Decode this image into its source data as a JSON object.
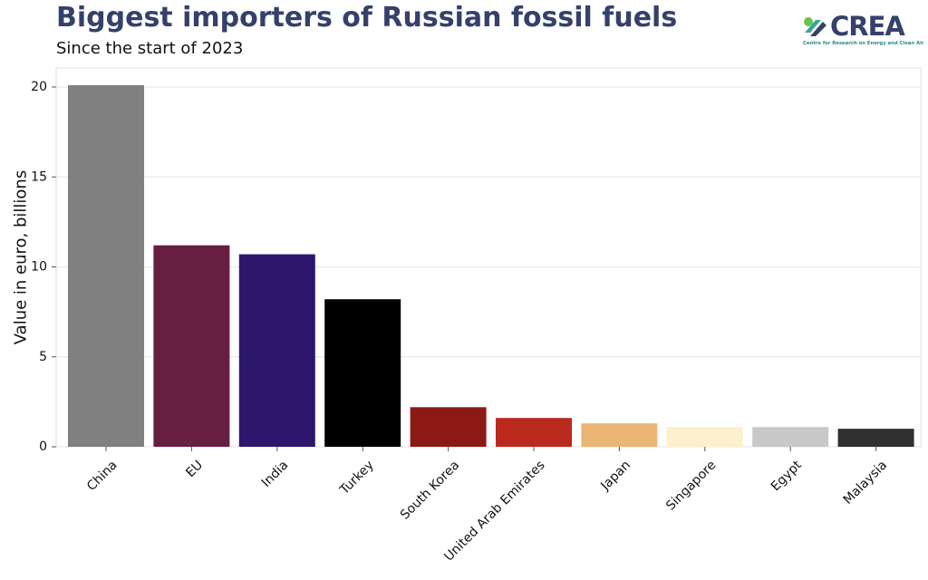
{
  "header": {
    "title": "Biggest importers of Russian fossil fuels",
    "subtitle": "Since the start of 2023"
  },
  "logo": {
    "word": "CREA",
    "tagline": "Centre for Research on Energy and Clean Air"
  },
  "chart_data": {
    "type": "bar",
    "title": "Biggest importers of Russian fossil fuels",
    "subtitle": "Since the start of 2023",
    "xlabel": "",
    "ylabel": "Value in euro, billions",
    "ylim": [
      0,
      21
    ],
    "yticks": [
      0,
      5,
      10,
      15,
      20
    ],
    "grid": true,
    "categories": [
      "China",
      "EU",
      "India",
      "Turkey",
      "South Korea",
      "United Arab Emirates",
      "Japan",
      "Singapore",
      "Egypt",
      "Malaysia"
    ],
    "values": [
      20.1,
      11.2,
      10.7,
      8.2,
      2.2,
      1.6,
      1.3,
      1.1,
      1.1,
      1.0
    ],
    "colors": [
      "#808080",
      "#671e40",
      "#2d176c",
      "#000000",
      "#8b1a14",
      "#bb2a1d",
      "#ebb574",
      "#fcf0cd",
      "#c8c8c8",
      "#303030"
    ]
  }
}
